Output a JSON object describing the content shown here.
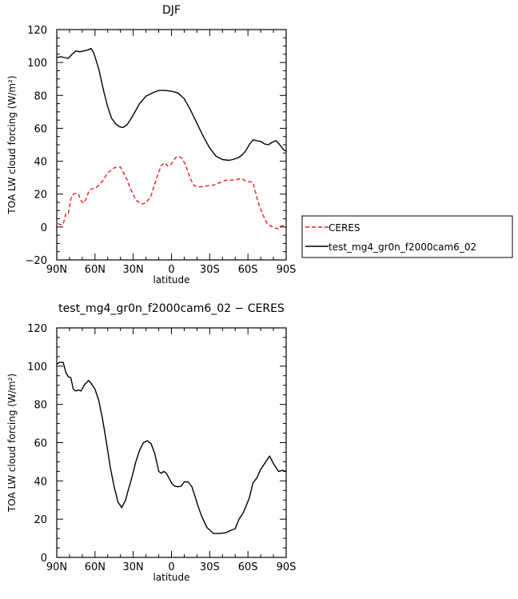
{
  "chart_data": [
    {
      "type": "line",
      "title": "DJF",
      "xlabel": "latitude",
      "ylabel": "TOA LW cloud forcing (W/m²)",
      "xlim": [
        90,
        -90
      ],
      "ylim": [
        -20,
        120
      ],
      "xticks": [
        90,
        60,
        30,
        0,
        -30,
        -60,
        -90
      ],
      "xtick_labels": [
        "90N",
        "60N",
        "30N",
        "0",
        "30S",
        "60S",
        "90S"
      ],
      "yticks": [
        -20,
        0,
        20,
        40,
        60,
        80,
        100,
        120
      ],
      "ytick_labels": [
        "−20",
        "0",
        "20",
        "40",
        "60",
        "80",
        "100",
        "120"
      ],
      "grid": false,
      "legend_position": "right",
      "series": [
        {
          "name": "CERES",
          "color": "#e8211d",
          "dash": true,
          "x": [
            89,
            87,
            85,
            83,
            81,
            79,
            77,
            75,
            73,
            71,
            69,
            67,
            65,
            63,
            61,
            59,
            57,
            54,
            50,
            45,
            40,
            35,
            32,
            28,
            24,
            20,
            16,
            12,
            8,
            5,
            3,
            1,
            -1,
            -3,
            -5,
            -8,
            -11,
            -15,
            -18,
            -21,
            -24,
            -28,
            -33,
            -38,
            -43,
            -48,
            -52,
            -55,
            -58,
            -60,
            -62,
            -64,
            -66,
            -68,
            -70,
            -72,
            -75,
            -78,
            -81,
            -84,
            -86,
            -88,
            -90
          ],
          "y": [
            2,
            1.5,
            1.5,
            8,
            8,
            17,
            20,
            20.5,
            20,
            16,
            14.5,
            17,
            21.5,
            23,
            23.5,
            24,
            25.5,
            28,
            33,
            36,
            36.5,
            29,
            23,
            16.5,
            14,
            14.5,
            19,
            29,
            37.5,
            39,
            37,
            37.5,
            39.5,
            42,
            43,
            42,
            38,
            29,
            25,
            24.5,
            24.5,
            25,
            25.5,
            27,
            28.5,
            28.5,
            29,
            29.5,
            28,
            27.5,
            27.5,
            27,
            21,
            15,
            11,
            7,
            2,
            0.5,
            -0.5,
            -1,
            0.5,
            1,
            0.5
          ]
        },
        {
          "name": "test_mg4_gr0n_f2000cam6_02",
          "color": "#000000",
          "dash": false,
          "x": [
            90,
            87,
            84,
            81,
            78,
            75,
            72,
            69,
            66,
            63,
            61,
            59,
            57,
            55,
            53,
            50,
            47,
            44,
            41,
            38,
            35,
            32,
            29,
            25,
            20,
            15,
            10,
            5,
            0,
            -5,
            -10,
            -15,
            -20,
            -25,
            -30,
            -35,
            -40,
            -45,
            -48,
            -52,
            -55,
            -58,
            -61,
            -64,
            -67,
            -70,
            -73,
            -76,
            -79,
            -82,
            -85,
            -88,
            -90
          ],
          "y": [
            103,
            103.5,
            103,
            102.5,
            105,
            107,
            106.5,
            107,
            107.5,
            108.5,
            106,
            101,
            96,
            89,
            82,
            73,
            66,
            63,
            61,
            60.5,
            62,
            65.5,
            69.5,
            75,
            79.5,
            81.5,
            83,
            83,
            82.5,
            81.5,
            78,
            71,
            63,
            55,
            48,
            43,
            41,
            40.5,
            41,
            42,
            43.5,
            46,
            50,
            53,
            52.5,
            52,
            50.5,
            50,
            51.5,
            52.5,
            50,
            47,
            46
          ]
        }
      ]
    },
    {
      "type": "line",
      "title": "test_mg4_gr0n_f2000cam6_02 − CERES",
      "xlabel": "latitude",
      "ylabel": "TOA LW cloud forcing (W/m²)",
      "xlim": [
        90,
        -90
      ],
      "ylim": [
        0,
        120
      ],
      "xticks": [
        90,
        60,
        30,
        0,
        -30,
        -60,
        -90
      ],
      "xtick_labels": [
        "90N",
        "60N",
        "30N",
        "0",
        "30S",
        "60S",
        "90S"
      ],
      "yticks": [
        0,
        20,
        40,
        60,
        80,
        100,
        120
      ],
      "ytick_labels": [
        "0",
        "20",
        "40",
        "60",
        "80",
        "100",
        "120"
      ],
      "grid": false,
      "series": [
        {
          "color": "#000000",
          "dash": false,
          "x": [
            90,
            88,
            85,
            83,
            81,
            79,
            77,
            75,
            73,
            71,
            68,
            65,
            63,
            60,
            57,
            54,
            51,
            48,
            45,
            42,
            39,
            36,
            34,
            31,
            28,
            25,
            22,
            19,
            16,
            13,
            10,
            8,
            6,
            4,
            2,
            0,
            -2,
            -4,
            -6,
            -8,
            -10,
            -13,
            -16,
            -18,
            -21,
            -24,
            -28,
            -33,
            -38,
            -43,
            -46,
            -50,
            -53,
            -56,
            -58,
            -61,
            -64,
            -67,
            -70,
            -73,
            -77,
            -80,
            -84,
            -87,
            -90
          ],
          "y": [
            101,
            102,
            102,
            97,
            94.5,
            94,
            88,
            87,
            87.5,
            87,
            90.5,
            92.5,
            91,
            88,
            82,
            72,
            60,
            47,
            37,
            29,
            26,
            30,
            35,
            42,
            50,
            56,
            60,
            61,
            59.5,
            54,
            45,
            44,
            45,
            44,
            41.5,
            39,
            37.5,
            37,
            37,
            37.5,
            39.5,
            39.5,
            37,
            33,
            26.5,
            21,
            15.5,
            12.5,
            12.5,
            13,
            14,
            15,
            20,
            23,
            26,
            31,
            39,
            41.5,
            46,
            49,
            53,
            49,
            45,
            45.5,
            45
          ]
        }
      ]
    }
  ]
}
